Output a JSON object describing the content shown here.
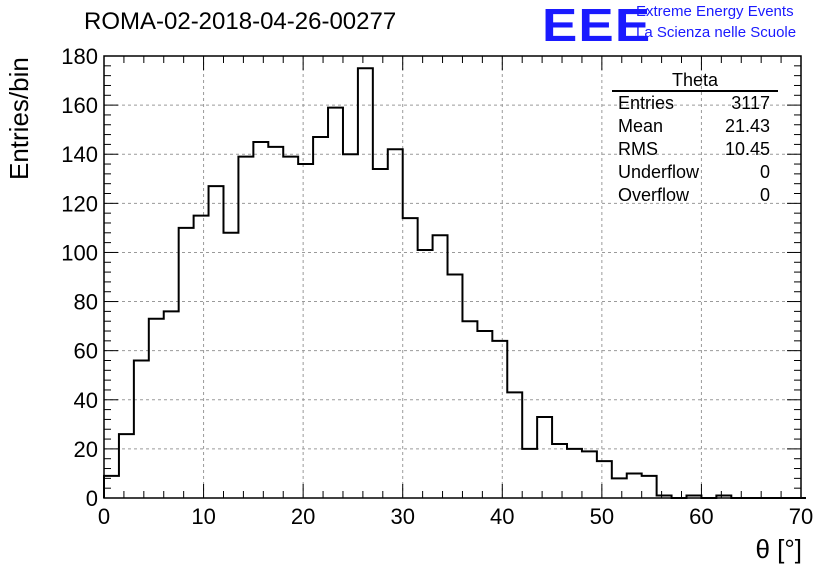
{
  "title": "ROMA-02-2018-04-26-00277",
  "logo": {
    "mark": "EEE",
    "line1": "Extreme Energy Events",
    "line2": "La Scienza nelle Scuole",
    "color": "#1a1aff"
  },
  "stats_box": {
    "title": "Theta",
    "rows": [
      {
        "label": "Entries",
        "value": "3117"
      },
      {
        "label": "Mean",
        "value": "21.43"
      },
      {
        "label": "RMS",
        "value": "10.45"
      },
      {
        "label": "Underflow",
        "value": "0"
      },
      {
        "label": "Overflow",
        "value": "0"
      }
    ]
  },
  "chart_data": {
    "type": "bar",
    "xlabel": "θ [°]",
    "ylabel": "Entries/bin",
    "xlim": [
      0,
      70
    ],
    "ylim": [
      0,
      180
    ],
    "x_ticks": [
      0,
      10,
      20,
      30,
      40,
      50,
      60,
      70
    ],
    "y_ticks": [
      0,
      20,
      40,
      60,
      80,
      100,
      120,
      140,
      160,
      180
    ],
    "grid": true,
    "bin_width": 1.5,
    "bin_start": 0,
    "values": [
      9,
      26,
      56,
      73,
      76,
      110,
      115,
      127,
      108,
      139,
      145,
      143,
      139,
      136,
      147,
      159,
      140,
      175,
      134,
      142,
      114,
      101,
      107,
      91,
      72,
      68,
      64,
      43,
      20,
      33,
      22,
      20,
      19,
      15,
      8,
      10,
      9,
      1,
      0,
      1,
      0,
      1,
      0,
      0,
      0,
      0,
      0
    ]
  }
}
